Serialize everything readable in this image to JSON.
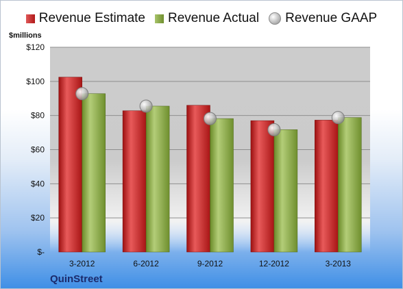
{
  "legend": {
    "estimate": "Revenue Estimate",
    "actual": "Revenue Actual",
    "gaap": "Revenue GAAP"
  },
  "unit_label": "$millions",
  "company": "QuinStreet",
  "colors": {
    "estimate": "#c62828",
    "actual": "#8aa64a",
    "gaap": "#bdbdbd",
    "plot_bg": "#c9c9c9",
    "company_text": "#1b2a6b"
  },
  "chart_data": {
    "type": "bar",
    "categories": [
      "3-2012",
      "6-2012",
      "9-2012",
      "12-2012",
      "3-2013"
    ],
    "series": [
      {
        "name": "Revenue Estimate",
        "values": [
          102.5,
          82.8,
          86.0,
          77.0,
          77.3
        ]
      },
      {
        "name": "Revenue Actual",
        "values": [
          92.8,
          85.5,
          78.2,
          71.7,
          78.8
        ]
      },
      {
        "name": "Revenue GAAP",
        "values": [
          92.8,
          85.5,
          78.2,
          71.7,
          78.8
        ]
      }
    ],
    "y_ticks": [
      "$-",
      "$20",
      "$40",
      "$60",
      "$80",
      "$100",
      "$120"
    ],
    "ylim": [
      0,
      120
    ],
    "ylabel": "$millions",
    "legend_position": "top",
    "grid": true
  }
}
